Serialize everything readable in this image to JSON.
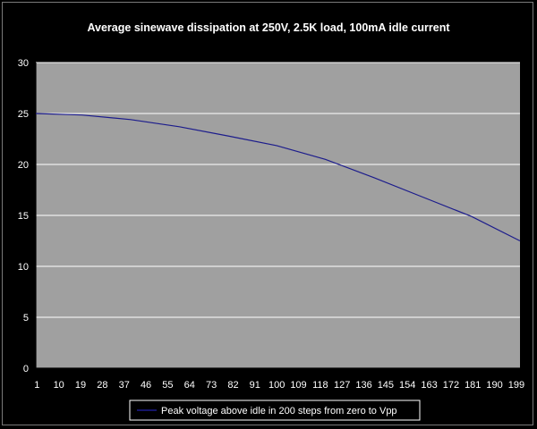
{
  "chart_data": {
    "type": "line",
    "title": "Average sinewave dissipation at 250V, 2.5K load, 100mA idle current",
    "xlabel": "",
    "ylabel": "",
    "ylim": [
      0,
      30
    ],
    "yticks": [
      0,
      5,
      10,
      15,
      20,
      25,
      30
    ],
    "xticks": [
      "1",
      "10",
      "19",
      "28",
      "37",
      "46",
      "55",
      "64",
      "73",
      "82",
      "91",
      "100",
      "109",
      "118",
      "127",
      "136",
      "145",
      "154",
      "163",
      "172",
      "181",
      "190",
      "199"
    ],
    "xrange": [
      1,
      200
    ],
    "grid": "horizontal",
    "legend_position": "bottom",
    "series": [
      {
        "name": "Peak voltage above idle in 200 steps from zero to Vpp",
        "color": "#1c1c8c",
        "x": [
          1,
          20,
          40,
          60,
          80,
          100,
          120,
          140,
          160,
          180,
          200
        ],
        "y": [
          25.0,
          24.85,
          24.4,
          23.7,
          22.8,
          21.85,
          20.5,
          18.7,
          16.8,
          14.9,
          12.5
        ]
      }
    ]
  },
  "colors": {
    "background": "#000000",
    "plot_area": "#a0a0a0",
    "gridline": "#ffffff",
    "axis": "#000000",
    "text": "#ffffff"
  }
}
